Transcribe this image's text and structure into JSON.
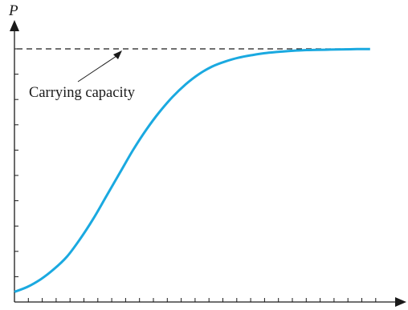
{
  "chart_data": {
    "type": "line",
    "ylabel": "P",
    "xlabel": "",
    "x_tick_count": 26,
    "y_tick_count": 10,
    "carrying_capacity": 10,
    "annotation": "Carrying capacity",
    "xlim": [
      0,
      28.4
    ],
    "ylim": [
      0,
      10
    ],
    "curve_color": "#1aa9e0",
    "series": [
      {
        "values_x": [
          0,
          1,
          2,
          3,
          4,
          5,
          6,
          7,
          8,
          9,
          10,
          11,
          12,
          13,
          14,
          15,
          16,
          17,
          18,
          19,
          20,
          21,
          22,
          23,
          24,
          25,
          26,
          27
        ],
        "values_y": [
          0.4,
          0.6,
          0.9,
          1.3,
          1.8,
          2.5,
          3.3,
          4.2,
          5.1,
          6.0,
          6.8,
          7.5,
          8.1,
          8.6,
          9.0,
          9.3,
          9.5,
          9.65,
          9.75,
          9.83,
          9.88,
          9.92,
          9.95,
          9.96,
          9.97,
          9.98,
          9.99,
          9.99
        ]
      }
    ]
  }
}
